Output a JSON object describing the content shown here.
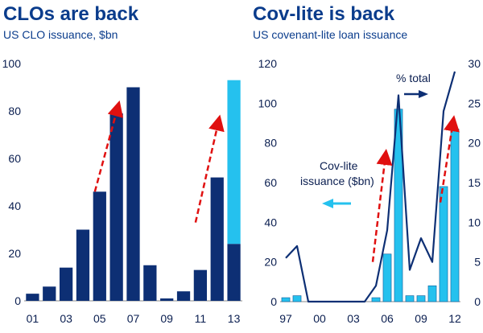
{
  "colors": {
    "dark": "#0d2f74",
    "light": "#25c1ee",
    "arrow": "#e01010",
    "text": "#0a3c8c"
  },
  "chart_data": [
    {
      "type": "bar",
      "title": "CLOs are back",
      "subtitle": "US CLO issuance, $bn",
      "categories": [
        "01",
        "02",
        "03",
        "04",
        "05",
        "06",
        "07",
        "08",
        "09",
        "10",
        "11",
        "12",
        "13"
      ],
      "xtick_labels": [
        "01",
        "03",
        "05",
        "07",
        "09",
        "11",
        "13"
      ],
      "series": [
        {
          "values": [
            3,
            6,
            14,
            30,
            46,
            79,
            90,
            15,
            1,
            4,
            13,
            52,
            24
          ]
        },
        {
          "values": [
            0,
            0,
            0,
            0,
            0,
            0,
            0,
            0,
            0,
            0,
            0,
            0,
            69
          ]
        }
      ],
      "stacked": true,
      "ylim": [
        0,
        100
      ],
      "yticks": [
        0,
        20,
        40,
        60,
        80,
        100
      ],
      "grid": false,
      "annotations": [
        {
          "type": "arrow",
          "from": [
            "05",
            46
          ],
          "to": [
            "06",
            82
          ]
        },
        {
          "type": "arrow",
          "from": [
            "11",
            33
          ],
          "to": [
            "12",
            76
          ]
        }
      ]
    },
    {
      "type": "bar+line",
      "title": "Cov-lite is back",
      "subtitle": "US covenant-lite loan issuance",
      "categories": [
        "97",
        "98",
        "99",
        "00",
        "01",
        "02",
        "03",
        "04",
        "05",
        "06",
        "07",
        "08",
        "09",
        "10",
        "11",
        "12"
      ],
      "xtick_labels": [
        "97",
        "00",
        "03",
        "06",
        "09",
        "12"
      ],
      "series": [
        {
          "name": "Cov-lite issuance ($bn)",
          "type": "bar",
          "axis": "left",
          "values": [
            2,
            3,
            0,
            0,
            0,
            0,
            0,
            0,
            2,
            24,
            97,
            3,
            3,
            8,
            58,
            87
          ]
        },
        {
          "name": "% total",
          "type": "line",
          "axis": "right",
          "values": [
            5.5,
            7,
            0,
            0,
            0,
            0,
            0,
            0,
            2,
            9,
            26,
            4,
            8,
            5,
            24,
            29
          ]
        }
      ],
      "ylim_left": [
        0,
        120
      ],
      "yticks_left": [
        0,
        20,
        40,
        60,
        80,
        100,
        120
      ],
      "ylim_right": [
        0,
        30
      ],
      "yticks_right": [
        0,
        5,
        10,
        15,
        20,
        25,
        30
      ],
      "grid": false,
      "annotations": [
        {
          "type": "arrow",
          "from": [
            "05",
            20
          ],
          "to": [
            "06",
            74
          ]
        },
        {
          "type": "arrow",
          "from": [
            "11",
            50
          ],
          "to": [
            "12",
            91
          ]
        }
      ],
      "legend_labels": {
        "bars_line1": "Cov-lite",
        "bars_line2": "issuance ($bn)",
        "line": "% total"
      }
    }
  ]
}
